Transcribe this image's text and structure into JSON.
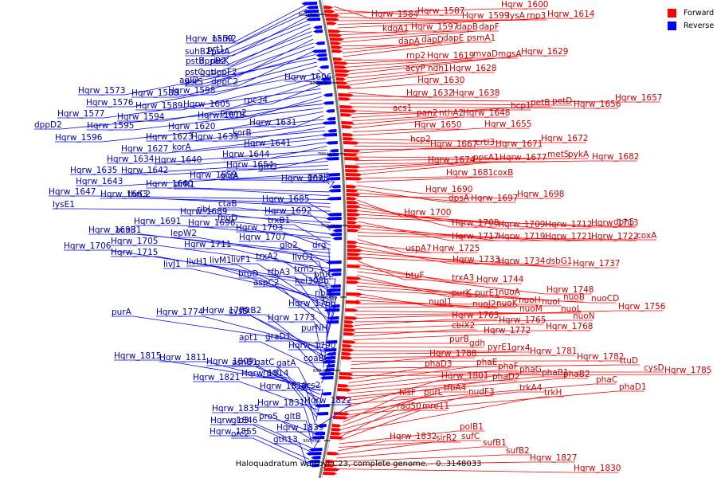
{
  "caption": "Haloquadratum walsbyi C23, complete genome. - 0..3148033",
  "legend": [
    {
      "label": "Forward",
      "color": "#ff0000"
    },
    {
      "label": "Reverse",
      "color": "#0000ff"
    }
  ],
  "colors": {
    "forward": "#ff0000",
    "reverse": "#0000ff",
    "backbone": "#777777"
  },
  "ticks": [
    "600 kbp",
    "650 kbp",
    "700 kbp",
    "750 kbp",
    "800 kbp",
    "850 kbp",
    "900 kbp"
  ],
  "forward_labels": [
    "Hqrw_1584",
    "Hqrw_1587",
    "Hqrw_1600",
    "Hqrw_1599",
    "lysA",
    "rnp3",
    "Hqrw_1614",
    "kdgA1",
    "Hqrw_1597",
    "dapB",
    "dapF",
    "dapA",
    "dapD",
    "dapE",
    "psmA1",
    "rnp2",
    "Hqrw_1619",
    "mvaD",
    "mgsA",
    "Hqrw_1629",
    "acyP",
    "ndh1",
    "Hqrw_1628",
    "Hqrw_1630",
    "Hqrw_1632",
    "Hqrw_1638",
    "Hqrw_1657",
    "petD",
    "Hqrw_1656",
    "acs1",
    "hcp1",
    "petB",
    "pan2",
    "nthA2",
    "Hqrw_1648",
    "Hqrw_1650",
    "Hqrw_1655",
    "Hqrw_1672",
    "hcp2",
    "crtI3",
    "Hqrw_1671",
    "Hqrw_1667",
    "metS",
    "pykA",
    "Hqrw_1682",
    "Hqrw_1674",
    "ppsA1",
    "Hqrw_1677",
    "Hqrw_1681",
    "coxB",
    "Hqrw_1690",
    "dpsA",
    "Hqrw_1697",
    "Hqrw_1698",
    "Hqrw_1700",
    "Hqrw_1708",
    "Hqrw_1709",
    "Hqrw_1712",
    "Hqrw_1713",
    "dph5",
    "Hqrw_1717",
    "Hqrw_1719",
    "Hqrw_1721",
    "Hqrw_1722",
    "coxA",
    "uspA7",
    "Hqrw_1725",
    "Hqrw_1733",
    "Hqrw_1734",
    "dsbG1",
    "Hqrw_1737",
    "btuF",
    "trxA3",
    "Hqrw_1744",
    "Hqrw_1748",
    "purK",
    "purE1",
    "nuoA",
    "nuoB",
    "nuoCD",
    "nuoJ1",
    "nuoJ2",
    "nuoK",
    "nuoH",
    "nuoI",
    "nuoM",
    "nuoL",
    "Hqrw_1756",
    "nuoN",
    "Hqrw_1763",
    "Hqrw_1765",
    "Hqrw_1768",
    "cbiX2",
    "Hqrw_1772",
    "purB",
    "gdh",
    "pyrE1",
    "grx4",
    "Hqrw_1781",
    "Hqrw_1782",
    "Hqrw_1788",
    "ttuD",
    "cysD",
    "Hqrw_1785",
    "phaD3",
    "phaE",
    "phaF",
    "phaG",
    "phaB1",
    "phaB2",
    "phaD2",
    "phaC",
    "Hqrw_1801",
    "trkA4",
    "phaD1",
    "tfbA4",
    "hisF",
    "purL",
    "nudF3",
    "trkH",
    "rad50",
    "mre11",
    "polB1",
    "sufC",
    "Hqrw_1832",
    "sirR2",
    "sufB1",
    "sufB2",
    "Hqrw_1827",
    "Hqrw_1830"
  ],
  "reverse_labels": [
    "Hqrw_1559",
    "narK2",
    "suhB2",
    "pstA",
    "prt1",
    "pstB",
    "rbsK",
    "dppB2",
    "pstC",
    "dppF2",
    "ggt",
    "pstS",
    "dppC2",
    "agID",
    "Hqrw_1573",
    "Hqrw_1588",
    "Hqrw_1598",
    "Hqrw_1606",
    "Hqrw_1576",
    "Hqrw_1589",
    "Hqrw_1605",
    "rpc34",
    "Hqrw_1577",
    "Hqrw_1594",
    "Hqrw_1618",
    "pmm2",
    "dppD2",
    "Hqrw_1595",
    "Hqrw_1620",
    "Hqrw_1631",
    "Hqrw_1596",
    "Hqrw_1623",
    "Hqrw_1633",
    "korB",
    "Hqrw_1627",
    "korA",
    "Hqrw_1641",
    "Hqrw_1644",
    "Hqrw_1634",
    "Hqrw_1640",
    "Hqrw_1654",
    "Hqrw_1635",
    "Hqrw_1642",
    "gth3",
    "Hqrw_1643",
    "Hqrw_1659",
    "gldA",
    "Hqrw_1673",
    "dnaJ2",
    "Hqrw_1660",
    "sirR1",
    "Hqrw_1647",
    "Hqrw_1663",
    "thrC2",
    "lysE1",
    "Hqrw_1685",
    "ctaB",
    "Hqrw_1689",
    "ribL",
    "Hqrw_1692",
    "fhuD",
    "Hqrw_1691",
    "Hqrw_1696",
    "trxB1",
    "Hqrw_1703",
    "Hqrw_1693",
    "acaB1",
    "lepW2",
    "Hqrw_1707",
    "Hqrw_1705",
    "Hqrw_1711",
    "glo2",
    "drg",
    "Hqrw_1706",
    "Hqrw_1715",
    "trxA2",
    "livG1",
    "livJ1",
    "livH1",
    "livM1",
    "livF1",
    "trm5",
    "btuD",
    "tfbA3",
    "btuC",
    "aspC2",
    "hel308b",
    "ribH",
    "Hqrw_1766",
    "purA",
    "Hqrw_1774",
    "Hqrw_1770",
    "cysS",
    "trxB2",
    "Hqrw_1773",
    "purNH",
    "apt1",
    "graD1",
    "Hqrw_1790",
    "coaBC",
    "Hqrw_1815",
    "Hqrw_1811",
    "Hqrw_1809",
    "asnB1",
    "gatC",
    "gatA",
    "Hqrw_1821",
    "Hqrw_1814",
    "rpoL",
    "acs2",
    "Hqrw_1819",
    "Hqrw_1822",
    "Hqrw_1835",
    "Hqrw_1831",
    "proS",
    "gltB",
    "Hqrw_1846",
    "glo3",
    "Hqrw_1839",
    "Hqrw_1855",
    "orc2",
    "gth13"
  ]
}
